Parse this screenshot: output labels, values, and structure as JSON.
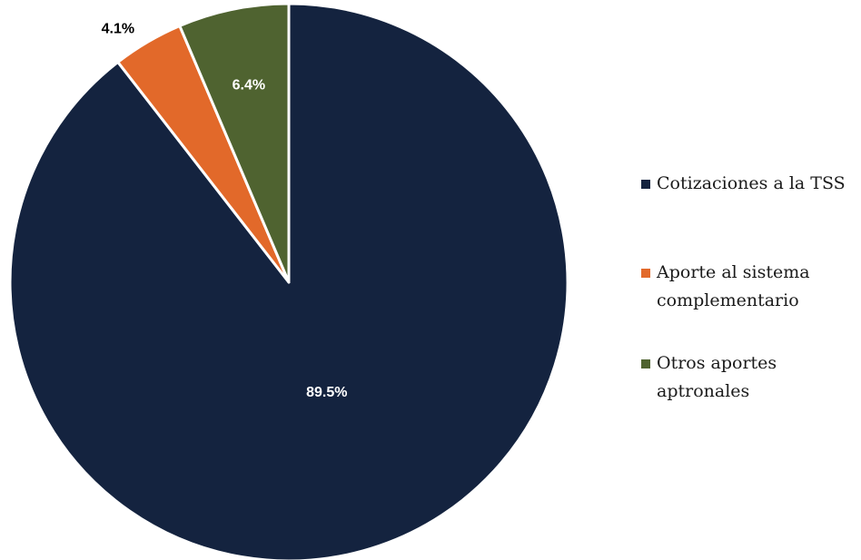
{
  "chart_data": {
    "type": "pie",
    "slices": [
      {
        "label": "Cotizaciones a la TSS",
        "legend_lines": [
          "Cotizaciones a la TSS"
        ],
        "value": 89.5,
        "value_label": "89.5%",
        "color": "#14233f",
        "label_color": "#ffffff"
      },
      {
        "label": "Aporte al sistema complementario",
        "legend_lines": [
          "Aporte al sistema",
          "complementario"
        ],
        "value": 4.1,
        "value_label": "4.1%",
        "color": "#e2692a",
        "label_color": "#000000"
      },
      {
        "label": "Otros aportes aptronales",
        "legend_lines": [
          "Otros aportes",
          "aptronales"
        ],
        "value": 6.4,
        "value_label": "6.4%",
        "color": "#4f6330",
        "label_color": "#ffffff"
      }
    ],
    "start_angle_deg": 0,
    "direction": "clockwise",
    "legend_position": "right"
  }
}
